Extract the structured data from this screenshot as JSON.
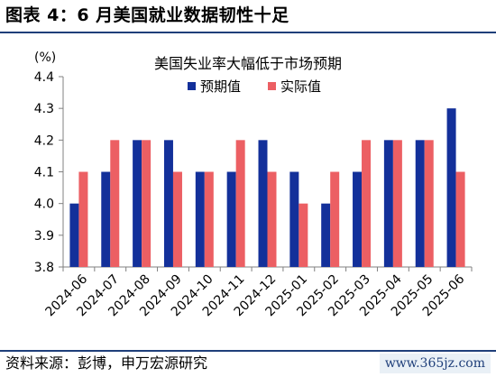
{
  "figure": {
    "title": "图表 4：6 月美国就业数据韧性十足",
    "source": "资料来源：彭博，申万宏源研究",
    "watermark": "www.365jz.com"
  },
  "colors": {
    "expected": "#13309a",
    "actual": "#ec5f63",
    "rule": "#1f3f7a"
  },
  "chart_data": {
    "type": "bar",
    "title": "美国失业率大幅低于市场预期",
    "unit_label": "(%)",
    "categories": [
      "2024-06",
      "2024-07",
      "2024-08",
      "2024-09",
      "2024-10",
      "2024-11",
      "2024-12",
      "2025-01",
      "2025-02",
      "2025-03",
      "2025-04",
      "2025-05",
      "2025-06"
    ],
    "series": [
      {
        "name": "预期值",
        "values": [
          4.0,
          4.1,
          4.2,
          4.2,
          4.1,
          4.1,
          4.2,
          4.1,
          4.0,
          4.1,
          4.2,
          4.2,
          4.3
        ]
      },
      {
        "name": "实际值",
        "values": [
          4.1,
          4.2,
          4.2,
          4.1,
          4.1,
          4.2,
          4.1,
          4.0,
          4.1,
          4.2,
          4.2,
          4.2,
          4.1
        ]
      }
    ],
    "ylim": [
      3.8,
      4.4
    ],
    "yticks": [
      "3.8",
      "3.9",
      "4.0",
      "4.1",
      "4.2",
      "4.3",
      "4.4"
    ],
    "legend": "top-right",
    "grid": false
  }
}
